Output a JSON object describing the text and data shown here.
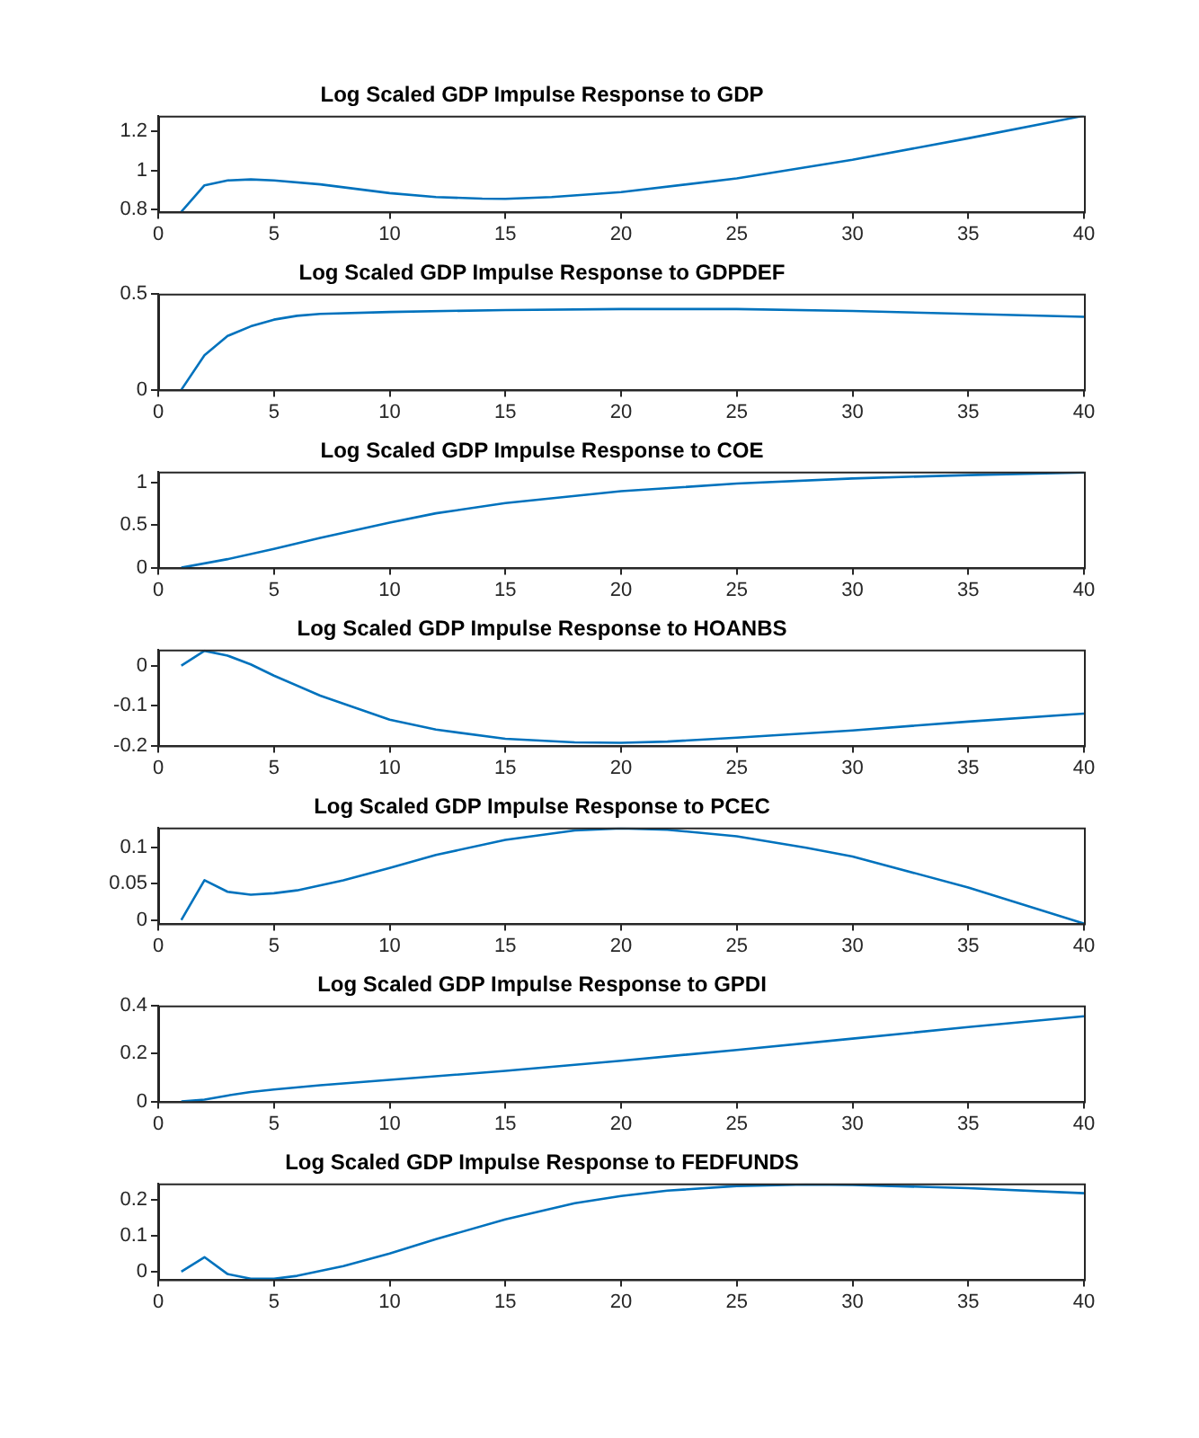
{
  "chart_data": [
    {
      "type": "line",
      "title": "Log Scaled GDP Impulse Response to GDP",
      "x": [
        1,
        2,
        3,
        4,
        5,
        7,
        10,
        12,
        14,
        15,
        17,
        20,
        25,
        30,
        35,
        40
      ],
      "series": [
        {
          "color": "#0072bd",
          "values": [
            0.79,
            0.925,
            0.95,
            0.955,
            0.95,
            0.93,
            0.885,
            0.865,
            0.857,
            0.856,
            0.865,
            0.89,
            0.96,
            1.055,
            1.165,
            1.28
          ]
        }
      ],
      "xlim": [
        0,
        40
      ],
      "xticks": [
        0,
        5,
        10,
        15,
        20,
        25,
        30,
        35,
        40
      ],
      "ylim": [
        0.79,
        1.28
      ],
      "yticks": [
        0.8,
        1,
        1.2
      ]
    },
    {
      "type": "line",
      "title": "Log Scaled GDP Impulse Response to GDPDEF",
      "x": [
        1,
        2,
        3,
        4,
        5,
        6,
        7,
        10,
        15,
        20,
        25,
        30,
        35,
        40
      ],
      "series": [
        {
          "color": "#0072bd",
          "values": [
            0,
            0.18,
            0.28,
            0.33,
            0.365,
            0.385,
            0.395,
            0.405,
            0.415,
            0.42,
            0.42,
            0.41,
            0.395,
            0.38
          ]
        }
      ],
      "xlim": [
        0,
        40
      ],
      "xticks": [
        0,
        5,
        10,
        15,
        20,
        25,
        30,
        35,
        40
      ],
      "ylim": [
        0,
        0.5
      ],
      "yticks": [
        0,
        0.5
      ]
    },
    {
      "type": "line",
      "title": "Log Scaled GDP Impulse Response to COE",
      "x": [
        1,
        3,
        5,
        7,
        10,
        12,
        15,
        20,
        25,
        30,
        35,
        40
      ],
      "series": [
        {
          "color": "#0072bd",
          "values": [
            0,
            0.1,
            0.22,
            0.35,
            0.53,
            0.64,
            0.76,
            0.9,
            0.99,
            1.05,
            1.09,
            1.12
          ]
        }
      ],
      "xlim": [
        0,
        40
      ],
      "xticks": [
        0,
        5,
        10,
        15,
        20,
        25,
        30,
        35,
        40
      ],
      "ylim": [
        0,
        1.13
      ],
      "yticks": [
        0,
        0.5,
        1
      ]
    },
    {
      "type": "line",
      "title": "Log Scaled GDP Impulse Response to HOANBS",
      "x": [
        1,
        2,
        3,
        4,
        5,
        7,
        10,
        12,
        15,
        18,
        20,
        22,
        25,
        30,
        35,
        40
      ],
      "series": [
        {
          "color": "#0072bd",
          "values": [
            0,
            0.037,
            0.025,
            0.003,
            -0.025,
            -0.075,
            -0.135,
            -0.16,
            -0.183,
            -0.192,
            -0.193,
            -0.19,
            -0.18,
            -0.162,
            -0.14,
            -0.12
          ]
        }
      ],
      "xlim": [
        0,
        40
      ],
      "xticks": [
        0,
        5,
        10,
        15,
        20,
        25,
        30,
        35,
        40
      ],
      "ylim": [
        -0.2,
        0.04
      ],
      "yticks": [
        -0.2,
        -0.1,
        0
      ]
    },
    {
      "type": "line",
      "title": "Log Scaled GDP Impulse Response to PCEC",
      "x": [
        1,
        2,
        3,
        4,
        5,
        6,
        8,
        10,
        12,
        15,
        18,
        20,
        22,
        25,
        28,
        30,
        35,
        40
      ],
      "series": [
        {
          "color": "#0072bd",
          "values": [
            0,
            0.055,
            0.039,
            0.035,
            0.037,
            0.041,
            0.055,
            0.072,
            0.09,
            0.111,
            0.124,
            0.127,
            0.125,
            0.116,
            0.1,
            0.088,
            0.045,
            -0.005
          ]
        }
      ],
      "xlim": [
        0,
        40
      ],
      "xticks": [
        0,
        5,
        10,
        15,
        20,
        25,
        30,
        35,
        40
      ],
      "ylim": [
        -0.005,
        0.128
      ],
      "yticks": [
        0,
        0.05,
        0.1
      ]
    },
    {
      "type": "line",
      "title": "Log Scaled GDP Impulse Response to GPDI",
      "x": [
        1,
        2,
        3,
        4,
        5,
        7,
        10,
        15,
        20,
        25,
        30,
        35,
        40
      ],
      "series": [
        {
          "color": "#0072bd",
          "values": [
            0,
            0.008,
            0.025,
            0.04,
            0.05,
            0.068,
            0.09,
            0.128,
            0.17,
            0.215,
            0.262,
            0.31,
            0.355
          ]
        }
      ],
      "xlim": [
        0,
        40
      ],
      "xticks": [
        0,
        5,
        10,
        15,
        20,
        25,
        30,
        35,
        40
      ],
      "ylim": [
        0,
        0.4
      ],
      "yticks": [
        0,
        0.2,
        0.4
      ]
    },
    {
      "type": "line",
      "title": "Log Scaled GDP Impulse Response to FEDFUNDS",
      "x": [
        1,
        2,
        3,
        4,
        5,
        6,
        8,
        10,
        12,
        15,
        18,
        20,
        22,
        25,
        28,
        30,
        35,
        40
      ],
      "series": [
        {
          "color": "#0072bd",
          "values": [
            0,
            0.04,
            -0.007,
            -0.02,
            -0.02,
            -0.012,
            0.015,
            0.05,
            0.09,
            0.145,
            0.19,
            0.21,
            0.225,
            0.238,
            0.242,
            0.241,
            0.232,
            0.218
          ]
        }
      ],
      "xlim": [
        0,
        40
      ],
      "xticks": [
        0,
        5,
        10,
        15,
        20,
        25,
        30,
        35,
        40
      ],
      "ylim": [
        -0.022,
        0.245
      ],
      "yticks": [
        0,
        0.1,
        0.2
      ]
    }
  ]
}
